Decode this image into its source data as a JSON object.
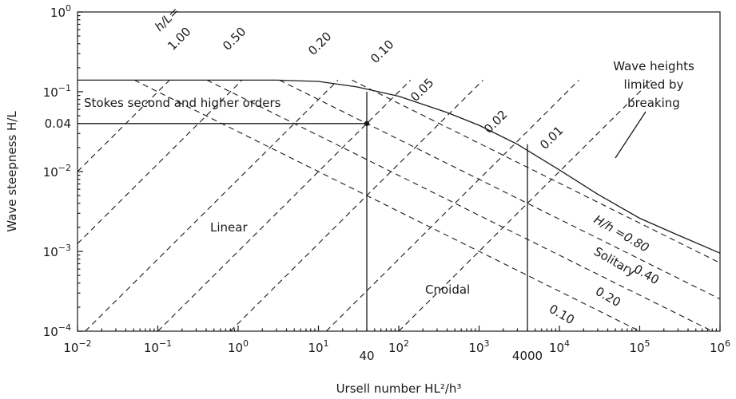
{
  "chart_data": {
    "type": "line",
    "title": "",
    "xlabel": "Ursell number HL²/h³",
    "ylabel": "Wave steepness H/L",
    "x_scale": "log",
    "y_scale": "log",
    "xlim": [
      0.01,
      1000000
    ],
    "ylim": [
      0.0001,
      1
    ],
    "grid": false,
    "x_ticks": [
      {
        "value": 0.01,
        "base": "10",
        "exp": "−2"
      },
      {
        "value": 0.1,
        "base": "10",
        "exp": "−1"
      },
      {
        "value": 1,
        "base": "10",
        "exp": "0"
      },
      {
        "value": 10,
        "base": "10",
        "exp": "1"
      },
      {
        "value": 100,
        "base": "10",
        "exp": "2"
      },
      {
        "value": 1000,
        "base": "10",
        "exp": "3"
      },
      {
        "value": 10000,
        "base": "10",
        "exp": "4"
      },
      {
        "value": 100000,
        "base": "10",
        "exp": "5"
      },
      {
        "value": 1000000,
        "base": "10",
        "exp": "6"
      }
    ],
    "y_ticks": [
      {
        "value": 0.0001,
        "base": "10",
        "exp": "−4"
      },
      {
        "value": 0.001,
        "base": "10",
        "exp": "−3"
      },
      {
        "value": 0.01,
        "base": "10",
        "exp": "−2"
      },
      {
        "value": 0.1,
        "base": "10",
        "exp": "−1"
      },
      {
        "value": 1,
        "base": "10",
        "exp": "0"
      }
    ],
    "extra_x_ticks": [
      {
        "value": 40,
        "label": "40"
      },
      {
        "value": 4000,
        "label": "4000"
      }
    ],
    "extra_y_ticks": [
      {
        "value": 0.04,
        "label": "0.04"
      }
    ],
    "breaking_limit": {
      "x": [
        0.01,
        3,
        10,
        30,
        100,
        400,
        1000,
        3000,
        10000,
        30000,
        100000,
        300000,
        1000000
      ],
      "y": [
        0.14,
        0.14,
        0.135,
        0.115,
        0.088,
        0.055,
        0.038,
        0.022,
        0.0105,
        0.0052,
        0.0026,
        0.0016,
        0.00095
      ]
    },
    "h_over_L": {
      "label": "h/L=",
      "lines": [
        {
          "value": 1.0,
          "label": "1.00"
        },
        {
          "value": 0.5,
          "label": "0.50"
        },
        {
          "value": 0.2,
          "label": "0.20"
        },
        {
          "value": 0.1,
          "label": "0.10"
        },
        {
          "value": 0.05,
          "label": "0.05"
        },
        {
          "value": 0.02,
          "label": "0.02"
        },
        {
          "value": 0.01,
          "label": "0.01"
        }
      ]
    },
    "H_over_h": {
      "label": "H/h",
      "lines": [
        {
          "value": 0.8,
          "label": "=0.80"
        },
        {
          "value": 0.4,
          "label": "0.40"
        },
        {
          "value": 0.2,
          "label": "0.20"
        },
        {
          "value": 0.1,
          "label": "0.10"
        }
      ]
    },
    "boundaries": {
      "stokes_steepness": 0.04,
      "ursell_40": 40,
      "ursell_4000": 4000
    },
    "point": {
      "x": 40,
      "y": 0.04
    },
    "annotations": {
      "stokes": "Stokes second and higher orders",
      "linear": "Linear",
      "cnoidal": "Cnoidal",
      "solitary": "Solitary",
      "breaking_1": "Wave heights",
      "breaking_2": "limited by",
      "breaking_3": "breaking"
    }
  }
}
